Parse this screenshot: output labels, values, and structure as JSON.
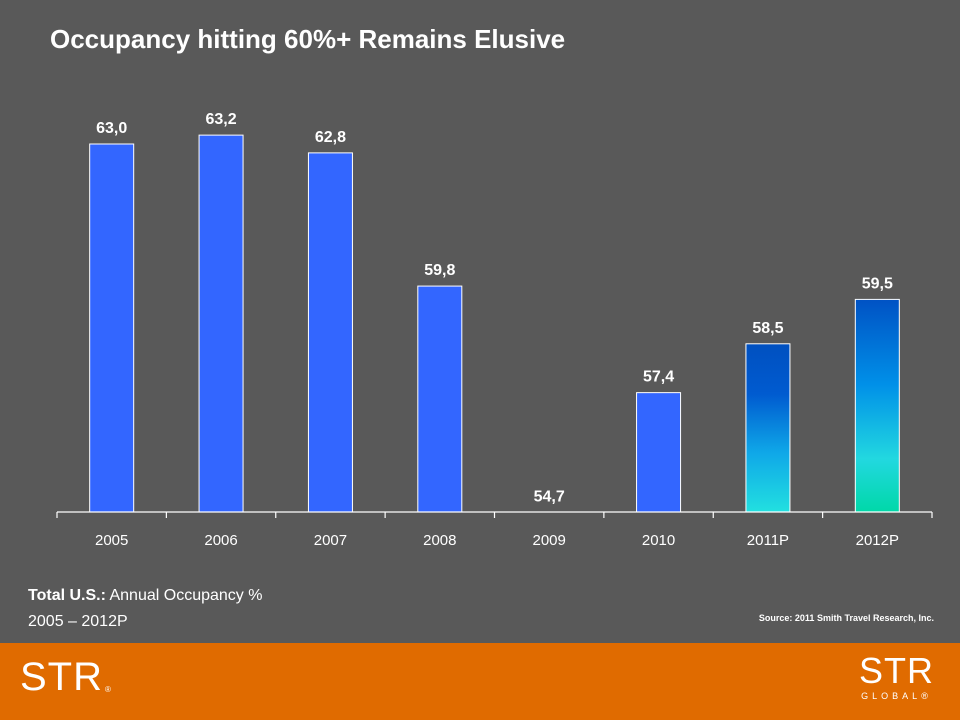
{
  "slide": {
    "title": "Occupancy hitting 60%+ Remains Elusive",
    "caption_bold": "Total U.S.:",
    "caption_rest": " Annual Occupancy %",
    "caption_line2": "2005 – 2012P",
    "source": "Source: 2011 Smith Travel Research, Inc.",
    "logo_left": "STR",
    "logo_left_mark": "®",
    "logo_right_main": "STR",
    "logo_right_sub": "GLOBAL®"
  },
  "colors": {
    "background": "#595959",
    "bar_actual": "#3366ff",
    "bar_projected_top": "#0057c8",
    "bar_projected_bottom": "#22dde0",
    "footer": "#e06b00"
  },
  "chart_data": {
    "type": "bar",
    "title": "",
    "xlabel": "",
    "ylabel": "",
    "categories": [
      "2005",
      "2006",
      "2007",
      "2008",
      "2009",
      "2010",
      "2011P",
      "2012P"
    ],
    "values": [
      63.0,
      63.2,
      62.8,
      59.8,
      54.7,
      57.4,
      58.5,
      59.5
    ],
    "data_labels": [
      "63,0",
      "63,2",
      "62,8",
      "59,8",
      "54,7",
      "57,4",
      "58,5",
      "59,5"
    ],
    "projected": [
      false,
      false,
      false,
      false,
      false,
      false,
      true,
      true
    ],
    "ylim": [
      50,
      64
    ],
    "grid": false,
    "legend": "none"
  }
}
